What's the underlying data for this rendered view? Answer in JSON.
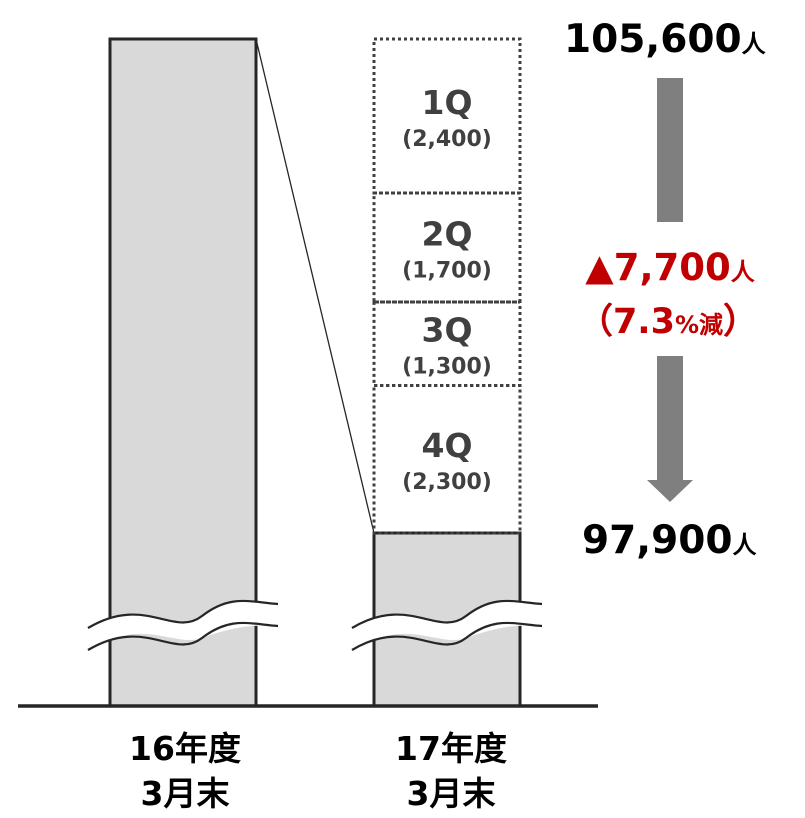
{
  "chart_data": {
    "type": "bar",
    "categories": [
      {
        "line1": "16年度",
        "line2": "3月末"
      },
      {
        "line1": "17年度",
        "line2": "3月末"
      }
    ],
    "values": [
      105600,
      97900
    ],
    "axis_break": true,
    "y_visible_range": [
      97900,
      105600
    ],
    "quarters": [
      {
        "label": "1Q",
        "value": 2400,
        "value_text": "(2,400)"
      },
      {
        "label": "2Q",
        "value": 1700,
        "value_text": "(1,700)"
      },
      {
        "label": "3Q",
        "value": 1300,
        "value_text": "(1,300)"
      },
      {
        "label": "4Q",
        "value": 2300,
        "value_text": "(2,300)"
      }
    ],
    "start_label": {
      "number": "105,600",
      "unit": "人"
    },
    "end_label": {
      "number": "97,900",
      "unit": "人"
    },
    "change": {
      "line1": "▲7,700",
      "line1_unit": "人",
      "line2_open": "（7.3",
      "line2_pct": "%減",
      "line2_close": "）"
    },
    "colors": {
      "bar_fill": "#d9d9d9",
      "bar_stroke": "#262626",
      "dotted_stroke": "#404040",
      "quarter_text": "#404040",
      "arrow": "#7f7f7f",
      "change_text": "#c00000",
      "label_text": "#000000"
    }
  }
}
